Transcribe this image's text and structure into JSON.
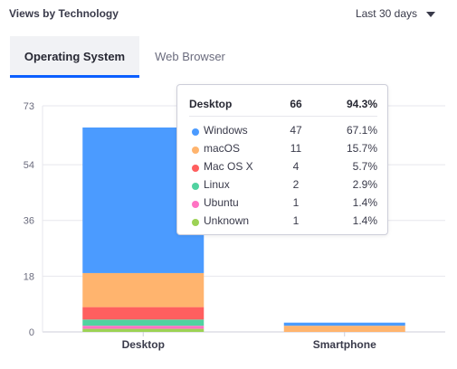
{
  "header": {
    "title": "Views by Technology",
    "range_label": "Last 30 days"
  },
  "tabs": [
    {
      "label": "Operating System",
      "active": true
    },
    {
      "label": "Web Browser",
      "active": false
    }
  ],
  "chart_data": {
    "type": "bar",
    "stacked": true,
    "categories": [
      "Desktop",
      "Smartphone"
    ],
    "y_ticks": [
      "73",
      "54",
      "36",
      "18",
      "0"
    ],
    "ylim": [
      0,
      73
    ],
    "grid": true,
    "series": [
      {
        "name": "Windows",
        "color": "#4b9bff",
        "values": [
          47,
          1
        ]
      },
      {
        "name": "macOS",
        "color": "#ffb46e",
        "values": [
          11,
          2
        ]
      },
      {
        "name": "Mac OS X",
        "color": "#ff5f5f",
        "values": [
          4,
          0
        ]
      },
      {
        "name": "Linux",
        "color": "#50d2a0",
        "values": [
          2,
          0
        ]
      },
      {
        "name": "Ubuntu",
        "color": "#ff73c3",
        "values": [
          1,
          0
        ]
      },
      {
        "name": "Unknown",
        "color": "#9cd255",
        "values": [
          1,
          0
        ]
      }
    ]
  },
  "tooltip": {
    "title": "Desktop",
    "total": "66",
    "total_pct": "94.3%",
    "rows": [
      {
        "name": "Windows",
        "count": "47",
        "pct": "67.1%",
        "color": "#4b9bff"
      },
      {
        "name": "macOS",
        "count": "11",
        "pct": "15.7%",
        "color": "#ffb46e"
      },
      {
        "name": "Mac OS X",
        "count": "4",
        "pct": "5.7%",
        "color": "#ff5f5f"
      },
      {
        "name": "Linux",
        "count": "2",
        "pct": "2.9%",
        "color": "#50d2a0"
      },
      {
        "name": "Ubuntu",
        "count": "1",
        "pct": "1.4%",
        "color": "#ff73c3"
      },
      {
        "name": "Unknown",
        "count": "1",
        "pct": "1.4%",
        "color": "#9cd255"
      }
    ]
  }
}
